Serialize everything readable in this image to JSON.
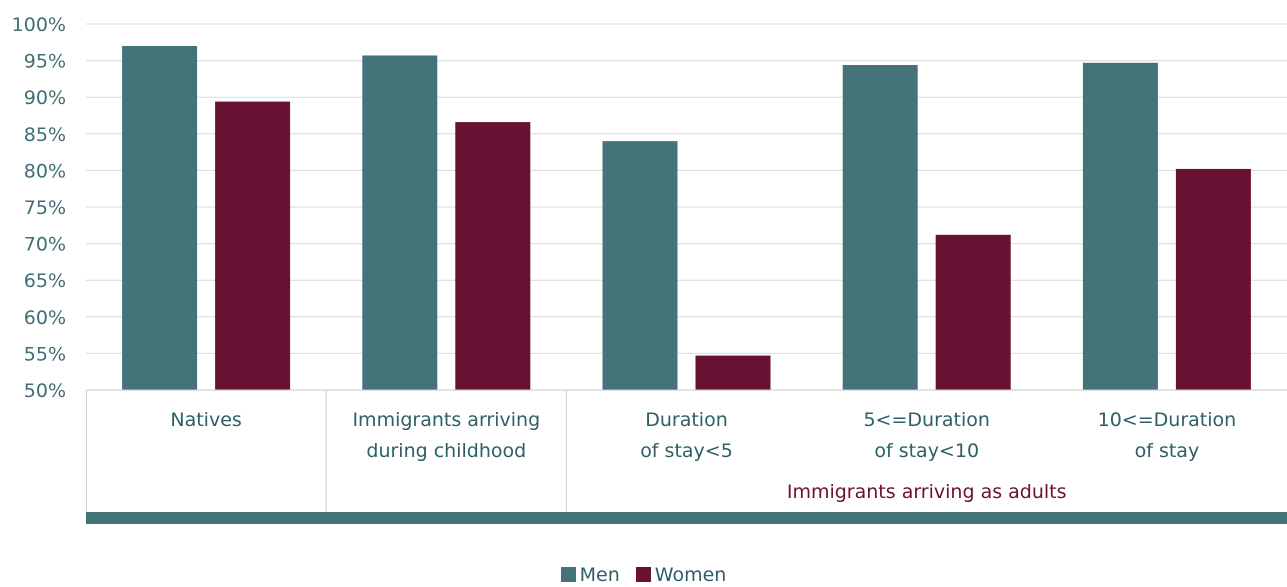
{
  "chart_data": {
    "type": "bar",
    "categories": [
      [
        "Natives"
      ],
      [
        "Immigrants arriving",
        "during childhood"
      ],
      [
        "Duration",
        "of stay<5"
      ],
      [
        "5<=Duration",
        "of stay<10"
      ],
      [
        "10<=Duration",
        "of stay"
      ]
    ],
    "group_label": "Immigrants arriving as adults",
    "series": [
      {
        "name": "Men",
        "color": "#44747a",
        "values": [
          97,
          95.7,
          84,
          94.4,
          94.7
        ]
      },
      {
        "name": "Women",
        "color": "#681133",
        "values": [
          89.4,
          86.6,
          54.7,
          71.2,
          80.2
        ]
      }
    ],
    "ylim": [
      50,
      100
    ],
    "yticks": [
      "50%",
      "55%",
      "60%",
      "65%",
      "70%",
      "75%",
      "80%",
      "85%",
      "90%",
      "95%",
      "100%"
    ],
    "grid": true,
    "legend_position": "bottom-center"
  }
}
